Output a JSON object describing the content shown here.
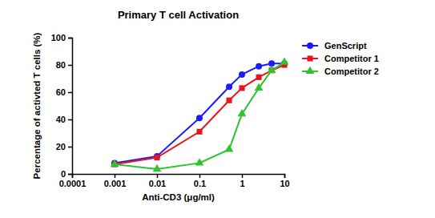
{
  "chart_data": {
    "type": "line",
    "title": "Primary T cell Activation",
    "x_label": "Anti-CD3 (μg/ml)",
    "y_label": "Percentage of activted T cells (%)",
    "x": [
      0.001,
      0.01,
      0.1,
      0.5,
      1,
      2.5,
      5,
      10
    ],
    "series": [
      {
        "name": "GenScript",
        "color": "#1a1aff",
        "marker": "circle",
        "line_style": "solid",
        "values": [
          8,
          13,
          41,
          64,
          73,
          79,
          81,
          81
        ]
      },
      {
        "name": "Competitor 1",
        "color": "#e8141c",
        "marker": "square",
        "line_style": "solid",
        "values": [
          7,
          12,
          31,
          54,
          63,
          71,
          76,
          80
        ]
      },
      {
        "name": "Competitor 2",
        "color": "#2fc42f",
        "marker": "triangle",
        "line_style": "solid",
        "values": [
          7,
          3.5,
          8,
          18,
          44,
          63,
          76,
          82
        ]
      }
    ],
    "log": "x",
    "xlim": [
      0.0001,
      10
    ],
    "xticks": [
      0.0001,
      0.001,
      0.01,
      0.1,
      1,
      10
    ],
    "ylim": [
      0,
      100
    ],
    "yticks": [
      0,
      20,
      40,
      60,
      80,
      100
    ],
    "grid": false,
    "legend": "right"
  }
}
